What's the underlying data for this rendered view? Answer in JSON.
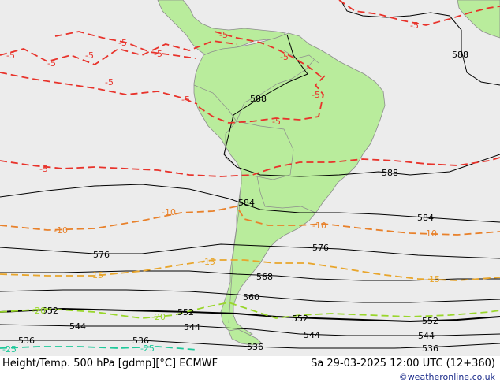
{
  "footer": {
    "title": "Height/Temp. 500 hPa [gdmp][°C] ECMWF",
    "time": "Sa 29-03-2025 12:00 UTC (12+360)",
    "credit": "©weatheronline.co.uk"
  },
  "colors": {
    "ocean": "#ececec",
    "land": "#b9ec9c",
    "border": "#8c8c8c",
    "height_contour": "#000000",
    "temp_minus5": "#e8332b",
    "temp_minus10": "#e8812b",
    "temp_minus15": "#e8a52b",
    "temp_minus20": "#99d62b",
    "temp_minus25": "#1ec99a"
  },
  "height_labels": [
    "588",
    "588",
    "588",
    "584",
    "584",
    "576",
    "576",
    "568",
    "560",
    "552",
    "552",
    "552",
    "552",
    "544",
    "544",
    "544",
    "544",
    "536",
    "536",
    "536",
    "536"
  ],
  "temp_labels": [
    "-5",
    "-5",
    "-5",
    "-5",
    "-5",
    "-5",
    "-5",
    "-5",
    "-5",
    "-5",
    "-5",
    "-5",
    "-5",
    "-10",
    "-10",
    "-10",
    "-10",
    "-15",
    "-15",
    "-15",
    "-20",
    "-20",
    "-25",
    "-25"
  ]
}
